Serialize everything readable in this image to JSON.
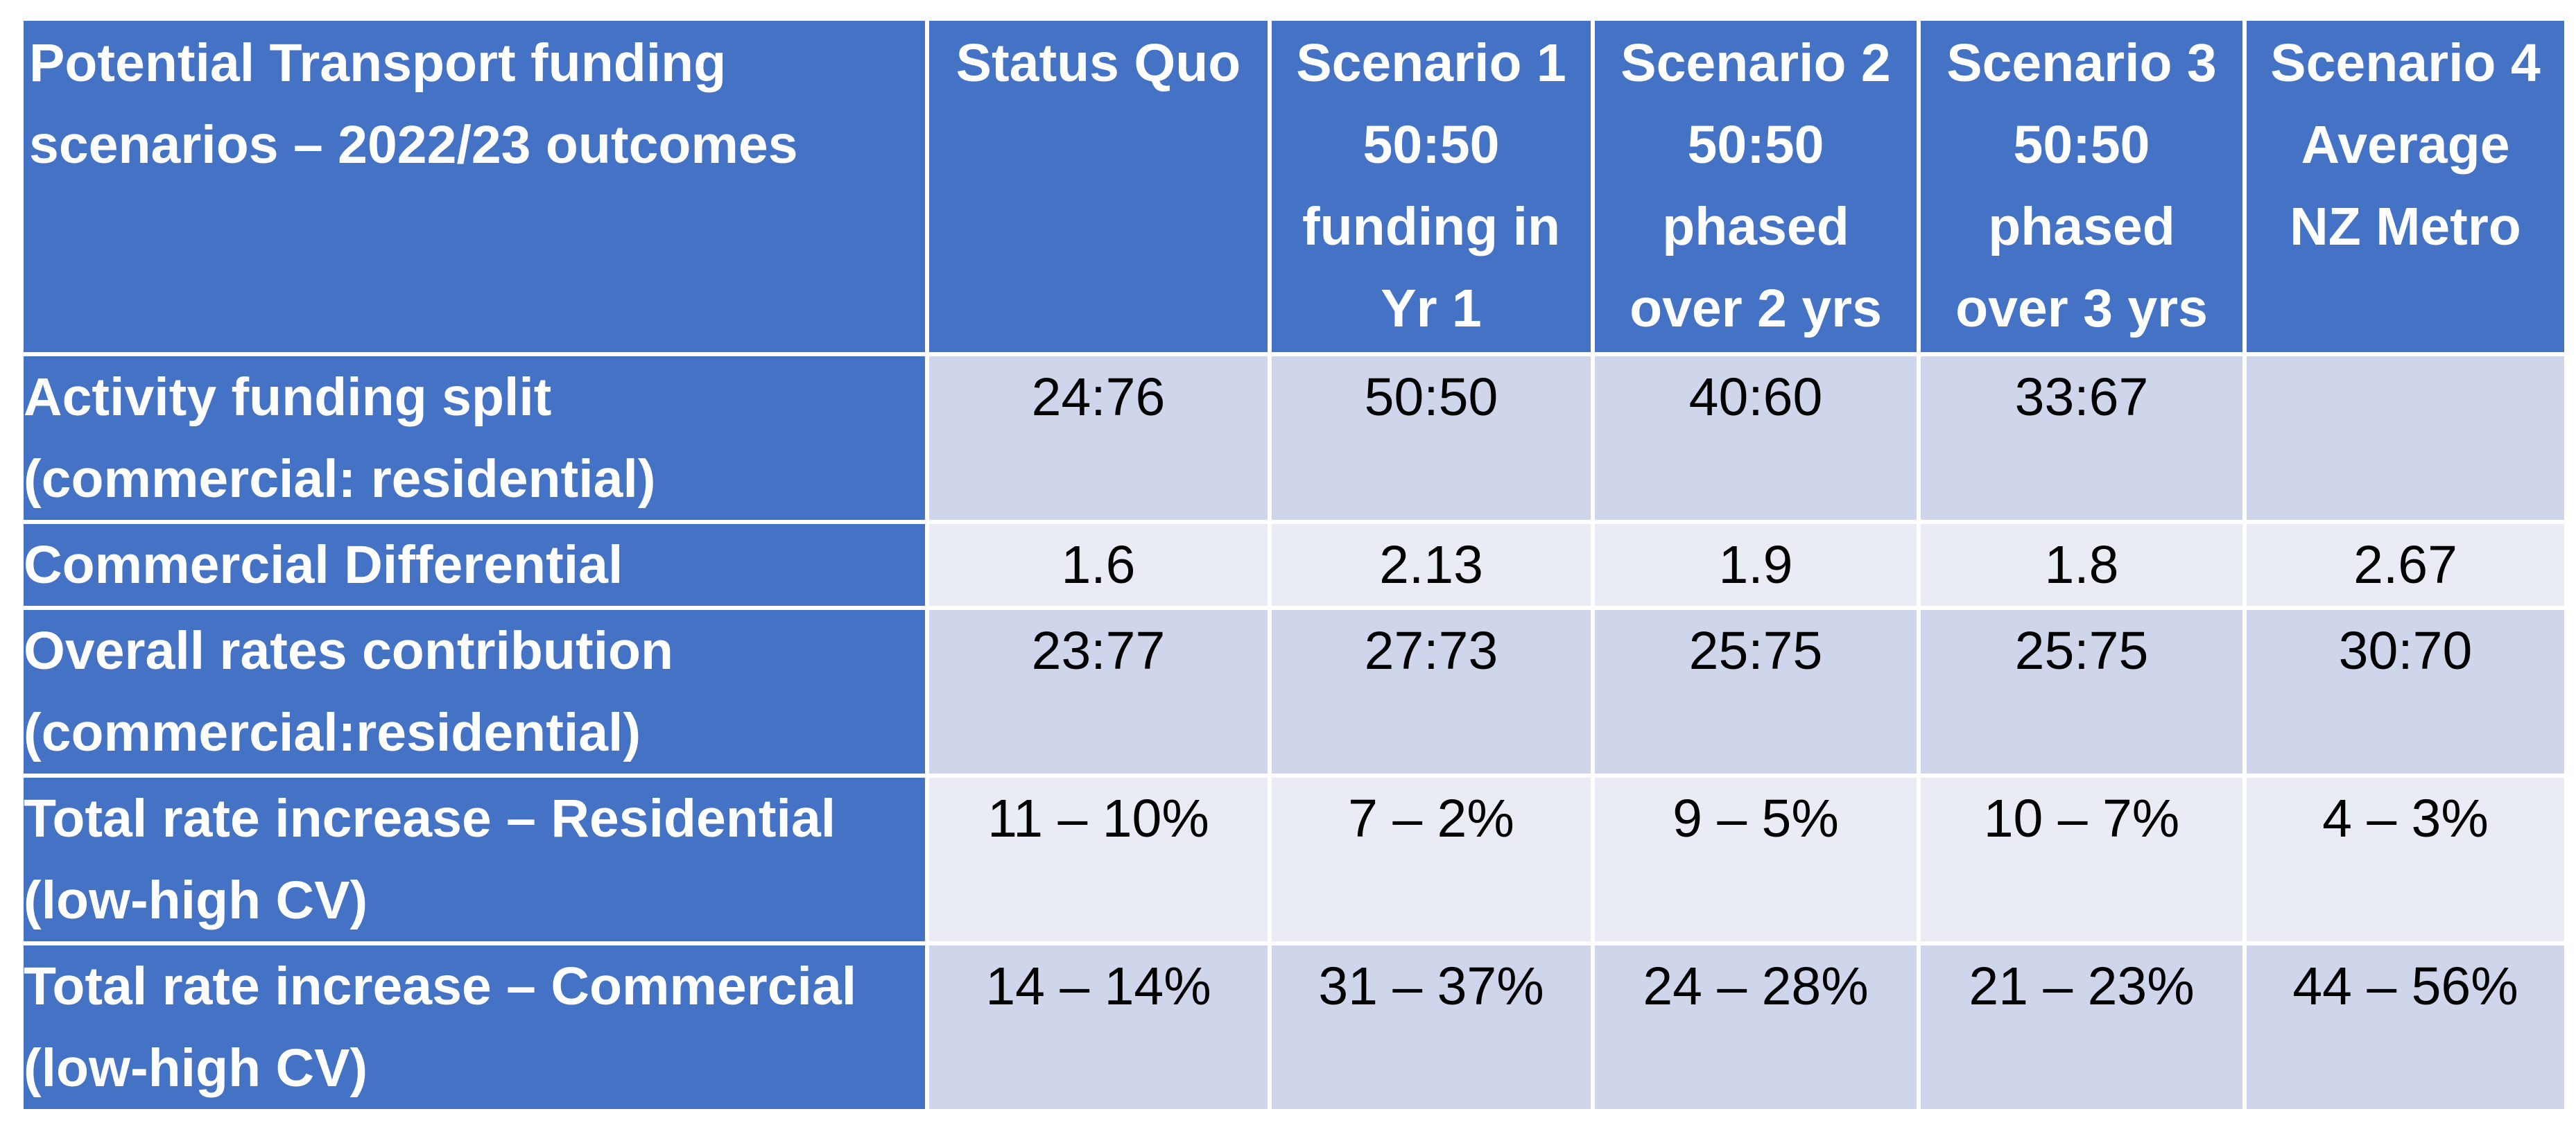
{
  "colors": {
    "header_bg": "#4472C4",
    "header_text": "#FFFFFF",
    "row_odd_bg": "#CFD5EA",
    "row_even_bg": "#E9EBF5",
    "cell_text": "#000000"
  },
  "table": {
    "header": {
      "title_line1": "Potential Transport funding",
      "title_line2": "scenarios – 2022/23 outcomes",
      "status_quo": "Status Quo",
      "s1_line1": "Scenario 1",
      "s1_line2": "50:50",
      "s1_line3": "funding in",
      "s1_line4": "Yr 1",
      "s2_line1": "Scenario 2",
      "s2_line2": "50:50",
      "s2_line3": "phased",
      "s2_line4": "over 2 yrs",
      "s3_line1": "Scenario 3",
      "s3_line2": "50:50",
      "s3_line3": "phased",
      "s3_line4": "over 3 yrs",
      "s4_line1": "Scenario 4",
      "s4_line2": "Average",
      "s4_line3": "NZ Metro"
    },
    "rows": [
      {
        "label_line1": "Activity funding split",
        "label_line2": "(commercial: residential)",
        "values": [
          "24:76",
          "50:50",
          "40:60",
          "33:67",
          ""
        ]
      },
      {
        "label_line1": "Commercial Differential",
        "label_line2": "",
        "values": [
          "1.6",
          "2.13",
          "1.9",
          "1.8",
          "2.67"
        ]
      },
      {
        "label_line1": "Overall rates contribution",
        "label_line2": "(commercial:residential)",
        "values": [
          "23:77",
          "27:73",
          "25:75",
          "25:75",
          "30:70"
        ]
      },
      {
        "label_line1": "Total rate increase – Residential",
        "label_line2": "(low-high CV)",
        "values": [
          "11 – 10%",
          "7 – 2%",
          "9 – 5%",
          "10 – 7%",
          "4 – 3%"
        ]
      },
      {
        "label_line1": "Total rate increase – Commercial",
        "label_line2": "(low-high CV)",
        "values": [
          "14 – 14%",
          "31 – 37%",
          "24 – 28%",
          "21 – 23%",
          "44 – 56%"
        ]
      }
    ]
  }
}
